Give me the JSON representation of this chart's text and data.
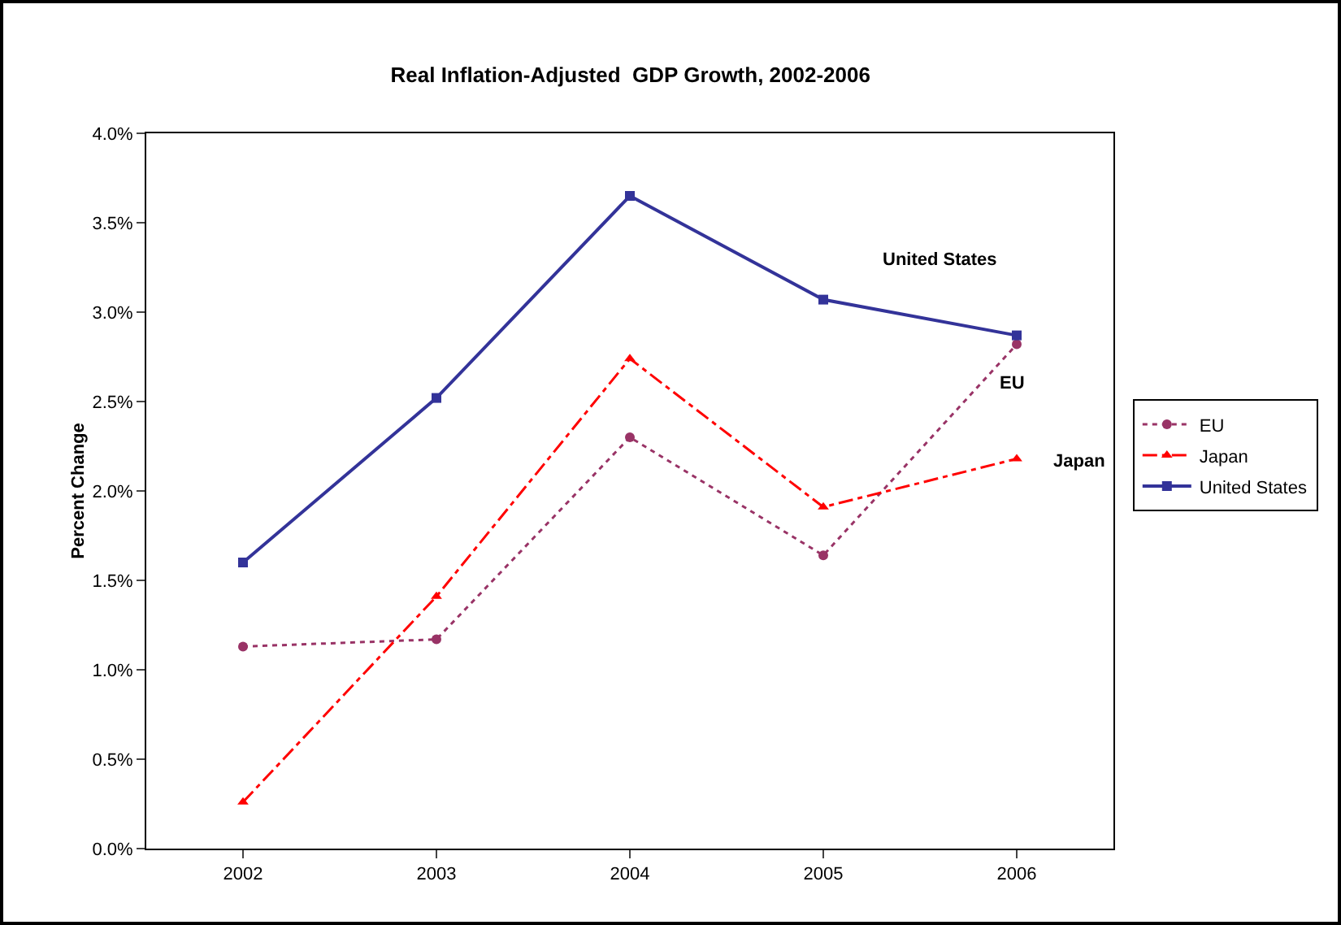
{
  "chart_data": {
    "type": "line",
    "title": "Real Inflation-Adjusted  GDP Growth, 2002-2006",
    "ylabel": "Percent Change",
    "categories": [
      "2002",
      "2003",
      "2004",
      "2005",
      "2006"
    ],
    "series": [
      {
        "name": "EU",
        "color": "#993366",
        "marker": "circle",
        "line_style": "dotted",
        "values": [
          1.13,
          1.17,
          2.3,
          1.64,
          2.82
        ]
      },
      {
        "name": "Japan",
        "color": "#ff0000",
        "marker": "triangle",
        "line_style": "dashed",
        "values": [
          0.26,
          1.41,
          2.74,
          1.91,
          2.18
        ]
      },
      {
        "name": "United States",
        "color": "#333399",
        "marker": "square",
        "line_style": "solid",
        "values": [
          1.6,
          2.52,
          3.65,
          3.07,
          2.87
        ]
      }
    ],
    "annotations": [
      "United States",
      "EU",
      "Japan"
    ],
    "ylim": [
      0,
      4
    ],
    "yticks": [
      {
        "value": 0,
        "label": "0.0%"
      },
      {
        "value": 0.5,
        "label": "0.5%"
      },
      {
        "value": 1,
        "label": "1.0%"
      },
      {
        "value": 1.5,
        "label": "1.5%"
      },
      {
        "value": 2,
        "label": "2.0%"
      },
      {
        "value": 2.5,
        "label": "2.5%"
      },
      {
        "value": 3,
        "label": "3.0%"
      },
      {
        "value": 3.5,
        "label": "3.5%"
      },
      {
        "value": 4,
        "label": "4.0%"
      }
    ],
    "grid": false,
    "legend": "right"
  }
}
